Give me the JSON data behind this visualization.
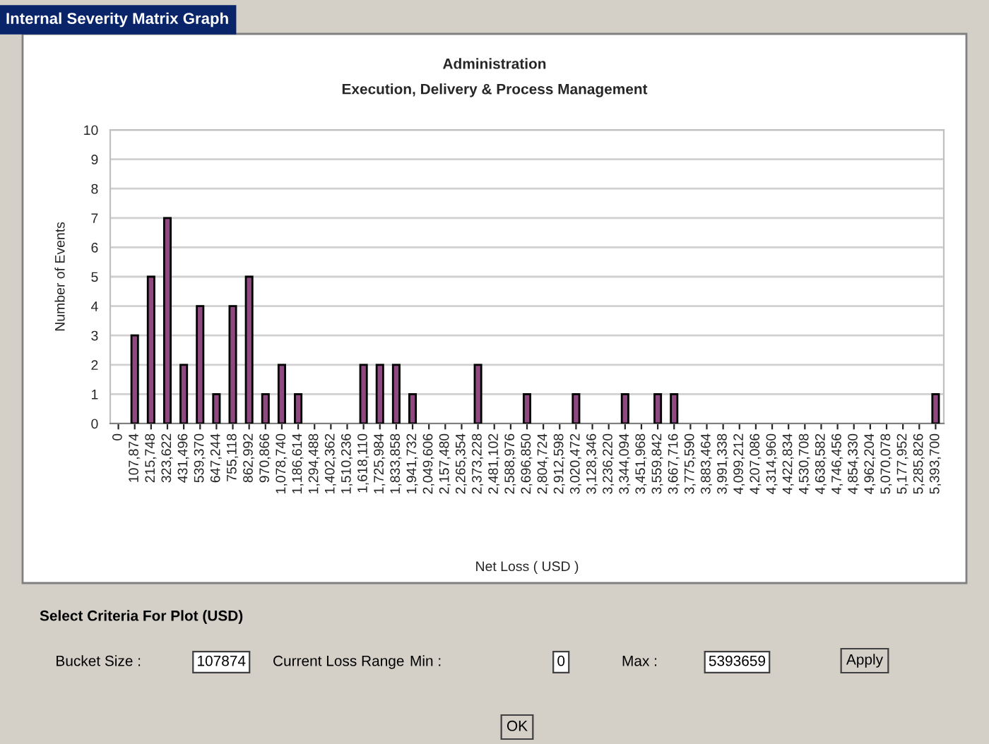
{
  "chart_data": {
    "type": "bar",
    "title": "Administration",
    "subtitle": "Execution, Delivery & Process Management",
    "xlabel": "Net Loss ( USD )",
    "ylabel": "Number of Events",
    "categories": [
      "0",
      "107,874",
      "215,748",
      "323,622",
      "431,496",
      "539,370",
      "647,244",
      "755,118",
      "862,992",
      "970,866",
      "1,078,740",
      "1,186,614",
      "1,294,488",
      "1,402,362",
      "1,510,236",
      "1,618,110",
      "1,725,984",
      "1,833,858",
      "1,941,732",
      "2,049,606",
      "2,157,480",
      "2,265,354",
      "2,373,228",
      "2,481,102",
      "2,588,976",
      "2,696,850",
      "2,804,724",
      "2,912,598",
      "3,020,472",
      "3,128,346",
      "3,236,220",
      "3,344,094",
      "3,451,968",
      "3,559,842",
      "3,667,716",
      "3,775,590",
      "3,883,464",
      "3,991,338",
      "4,099,212",
      "4,207,086",
      "4,314,960",
      "4,422,834",
      "4,530,708",
      "4,638,582",
      "4,746,456",
      "4,854,330",
      "4,962,204",
      "5,070,078",
      "5,177,952",
      "5,285,826",
      "5,393,700"
    ],
    "values": [
      null,
      3,
      5,
      7,
      2,
      4,
      1,
      4,
      5,
      1,
      2,
      1,
      null,
      null,
      null,
      2,
      2,
      2,
      1,
      null,
      null,
      null,
      2,
      null,
      null,
      1,
      null,
      null,
      1,
      null,
      null,
      1,
      null,
      1,
      1,
      null,
      null,
      null,
      null,
      null,
      null,
      null,
      null,
      null,
      null,
      null,
      null,
      null,
      null,
      null,
      1
    ],
    "color": "#8e4a80",
    "ylim": [
      0,
      10
    ],
    "yticks": [
      0,
      1,
      2,
      3,
      4,
      5,
      6,
      7,
      8,
      9,
      10
    ],
    "grid": "y",
    "legend": false,
    "annotations": [
      "Internal Severity Matrix Graph",
      "Select Criteria For Plot (USD)",
      "Bucket Size :",
      "107874",
      "Current Loss Range",
      "Min :",
      "0",
      "Max :",
      "5393659",
      "Apply",
      "OK"
    ]
  }
}
